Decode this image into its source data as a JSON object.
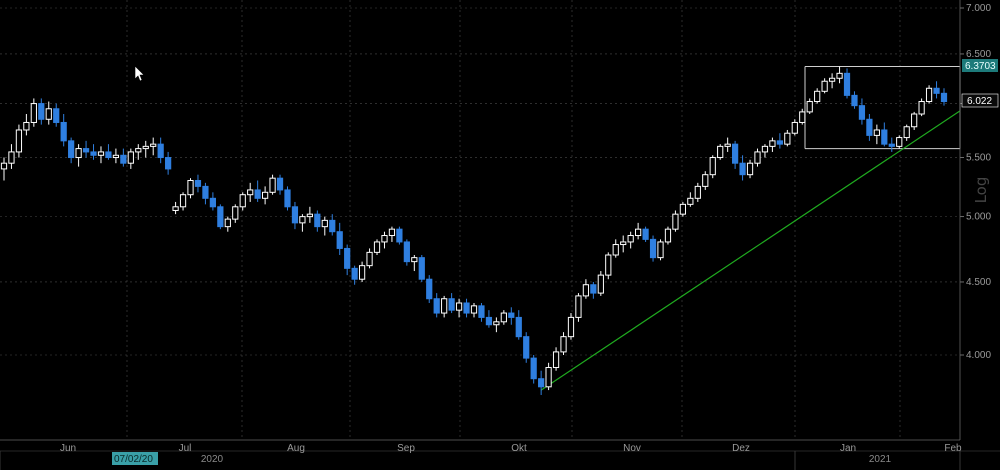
{
  "chart_data": {
    "type": "candlestick",
    "title": "",
    "scale_label": "Log",
    "y_scale": "log",
    "ylim": [
      3.6,
      7.0
    ],
    "y_ticks": [
      "7.000",
      "6.500",
      "6.000",
      "5.500",
      "5.000",
      "4.500",
      "4.000"
    ],
    "x_month_labels": [
      "Jun",
      "Jul",
      "Aug",
      "Sep",
      "Okt",
      "Nov",
      "Dez",
      "Jan",
      "Feb"
    ],
    "x_year_labels": [
      "2020",
      "2021"
    ],
    "cursor_date": "07/02/20",
    "high_tag": "6.3703",
    "last_price": "6.022",
    "colors": {
      "background": "#000000",
      "up_candle": "#ffffff",
      "down_candle": "#2f7fe0",
      "trendline": "#1faa1f",
      "range_box": "#cfcfcf",
      "grid": "#4a4a4a",
      "high_tag_bg": "#1d7a7a",
      "last_tag_fg": "#ffffff"
    },
    "trendline": {
      "from": {
        "date": "Okt 28 2020",
        "price": 3.78
      },
      "to": {
        "date": "Feb 2021",
        "price": 5.93
      }
    },
    "range_box": {
      "high": 6.37,
      "low": 5.58
    },
    "series": [
      {
        "name": "",
        "points": [
          [
            5.4,
            5.5,
            5.3,
            5.45
          ],
          [
            5.45,
            5.62,
            5.4,
            5.55
          ],
          [
            5.55,
            5.8,
            5.5,
            5.75
          ],
          [
            5.75,
            5.9,
            5.7,
            5.82
          ],
          [
            5.82,
            6.05,
            5.78,
            6.0
          ],
          [
            6.0,
            6.05,
            5.8,
            5.85
          ],
          [
            5.85,
            6.02,
            5.8,
            5.95
          ],
          [
            5.95,
            6.0,
            5.78,
            5.82
          ],
          [
            5.82,
            5.9,
            5.6,
            5.65
          ],
          [
            5.65,
            5.68,
            5.45,
            5.5
          ],
          [
            5.5,
            5.62,
            5.42,
            5.58
          ],
          [
            5.58,
            5.65,
            5.5,
            5.55
          ],
          [
            5.55,
            5.62,
            5.48,
            5.52
          ],
          [
            5.52,
            5.6,
            5.45,
            5.55
          ],
          [
            5.55,
            5.62,
            5.48,
            5.5
          ],
          [
            5.5,
            5.58,
            5.45,
            5.52
          ],
          [
            5.52,
            5.58,
            5.42,
            5.45
          ],
          [
            5.45,
            5.58,
            5.4,
            5.55
          ],
          [
            5.55,
            5.62,
            5.48,
            5.58
          ],
          [
            5.58,
            5.65,
            5.5,
            5.6
          ],
          [
            5.6,
            5.68,
            5.52,
            5.62
          ],
          [
            5.62,
            5.68,
            5.45,
            5.5
          ],
          [
            5.5,
            5.55,
            5.35,
            5.4
          ],
          [
            5.05,
            5.12,
            5.02,
            5.08
          ],
          [
            5.08,
            5.2,
            5.05,
            5.18
          ],
          [
            5.18,
            5.32,
            5.15,
            5.3
          ],
          [
            5.3,
            5.35,
            5.2,
            5.25
          ],
          [
            5.25,
            5.28,
            5.1,
            5.15
          ],
          [
            5.15,
            5.2,
            5.05,
            5.08
          ],
          [
            5.08,
            5.1,
            4.9,
            4.92
          ],
          [
            4.92,
            5.0,
            4.88,
            4.98
          ],
          [
            4.98,
            5.1,
            4.95,
            5.08
          ],
          [
            5.08,
            5.2,
            5.05,
            5.18
          ],
          [
            5.18,
            5.28,
            5.12,
            5.22
          ],
          [
            5.22,
            5.3,
            5.12,
            5.15
          ],
          [
            5.15,
            5.25,
            5.1,
            5.2
          ],
          [
            5.2,
            5.35,
            5.18,
            5.32
          ],
          [
            5.32,
            5.35,
            5.18,
            5.22
          ],
          [
            5.22,
            5.25,
            5.05,
            5.08
          ],
          [
            5.08,
            5.12,
            4.9,
            4.95
          ],
          [
            4.95,
            5.02,
            4.88,
            5.0
          ],
          [
            5.0,
            5.08,
            4.95,
            5.02
          ],
          [
            5.02,
            5.05,
            4.88,
            4.92
          ],
          [
            4.92,
            5.0,
            4.85,
            4.97
          ],
          [
            4.97,
            5.02,
            4.85,
            4.88
          ],
          [
            4.88,
            4.95,
            4.7,
            4.75
          ],
          [
            4.75,
            4.78,
            4.55,
            4.6
          ],
          [
            4.6,
            4.62,
            4.48,
            4.52
          ],
          [
            4.52,
            4.65,
            4.5,
            4.62
          ],
          [
            4.62,
            4.75,
            4.6,
            4.72
          ],
          [
            4.72,
            4.82,
            4.7,
            4.8
          ],
          [
            4.8,
            4.88,
            4.75,
            4.85
          ],
          [
            4.85,
            4.92,
            4.8,
            4.9
          ],
          [
            4.9,
            4.92,
            4.78,
            4.8
          ],
          [
            4.8,
            4.82,
            4.62,
            4.65
          ],
          [
            4.65,
            4.7,
            4.58,
            4.68
          ],
          [
            4.68,
            4.7,
            4.5,
            4.52
          ],
          [
            4.52,
            4.55,
            4.35,
            4.38
          ],
          [
            4.38,
            4.42,
            4.25,
            4.28
          ],
          [
            4.28,
            4.4,
            4.25,
            4.38
          ],
          [
            4.38,
            4.42,
            4.28,
            4.3
          ],
          [
            4.3,
            4.38,
            4.25,
            4.35
          ],
          [
            4.35,
            4.38,
            4.25,
            4.28
          ],
          [
            4.28,
            4.35,
            4.25,
            4.33
          ],
          [
            4.33,
            4.35,
            4.22,
            4.25
          ],
          [
            4.25,
            4.3,
            4.18,
            4.2
          ],
          [
            4.2,
            4.25,
            4.15,
            4.22
          ],
          [
            4.22,
            4.3,
            4.2,
            4.28
          ],
          [
            4.28,
            4.32,
            4.2,
            4.25
          ],
          [
            4.25,
            4.3,
            4.1,
            4.12
          ],
          [
            4.12,
            4.15,
            3.95,
            3.98
          ],
          [
            3.98,
            4.0,
            3.82,
            3.85
          ],
          [
            3.85,
            3.9,
            3.75,
            3.8
          ],
          [
            3.8,
            3.95,
            3.78,
            3.92
          ],
          [
            3.92,
            4.05,
            3.9,
            4.02
          ],
          [
            4.02,
            4.15,
            4.0,
            4.12
          ],
          [
            4.12,
            4.28,
            4.1,
            4.25
          ],
          [
            4.25,
            4.42,
            4.22,
            4.4
          ],
          [
            4.4,
            4.52,
            4.38,
            4.48
          ],
          [
            4.48,
            4.5,
            4.38,
            4.42
          ],
          [
            4.42,
            4.58,
            4.4,
            4.55
          ],
          [
            4.55,
            4.72,
            4.52,
            4.7
          ],
          [
            4.7,
            4.82,
            4.68,
            4.78
          ],
          [
            4.78,
            4.85,
            4.72,
            4.8
          ],
          [
            4.8,
            4.88,
            4.75,
            4.85
          ],
          [
            4.85,
            4.95,
            4.82,
            4.9
          ],
          [
            4.9,
            4.92,
            4.8,
            4.82
          ],
          [
            4.82,
            4.85,
            4.65,
            4.68
          ],
          [
            4.68,
            4.82,
            4.66,
            4.8
          ],
          [
            4.8,
            4.92,
            4.78,
            4.9
          ],
          [
            4.9,
            5.05,
            4.88,
            5.02
          ],
          [
            5.02,
            5.12,
            5.0,
            5.1
          ],
          [
            5.1,
            5.2,
            5.08,
            5.15
          ],
          [
            5.15,
            5.28,
            5.12,
            5.25
          ],
          [
            5.25,
            5.38,
            5.22,
            5.35
          ],
          [
            5.35,
            5.52,
            5.32,
            5.5
          ],
          [
            5.5,
            5.62,
            5.48,
            5.6
          ],
          [
            5.6,
            5.68,
            5.55,
            5.62
          ],
          [
            5.62,
            5.65,
            5.4,
            5.45
          ],
          [
            5.45,
            5.52,
            5.3,
            5.35
          ],
          [
            5.35,
            5.48,
            5.32,
            5.45
          ],
          [
            5.45,
            5.58,
            5.42,
            5.55
          ],
          [
            5.55,
            5.62,
            5.5,
            5.6
          ],
          [
            5.6,
            5.68,
            5.55,
            5.65
          ],
          [
            5.65,
            5.72,
            5.58,
            5.62
          ],
          [
            5.62,
            5.75,
            5.6,
            5.72
          ],
          [
            5.72,
            5.85,
            5.7,
            5.82
          ],
          [
            5.82,
            5.95,
            5.8,
            5.92
          ],
          [
            5.92,
            6.05,
            5.9,
            6.02
          ],
          [
            6.02,
            6.15,
            6.0,
            6.12
          ],
          [
            6.12,
            6.25,
            6.1,
            6.22
          ],
          [
            6.22,
            6.3,
            6.15,
            6.25
          ],
          [
            6.25,
            6.37,
            6.2,
            6.3
          ],
          [
            6.3,
            6.35,
            6.05,
            6.08
          ],
          [
            6.08,
            6.12,
            5.95,
            5.98
          ],
          [
            5.98,
            6.05,
            5.8,
            5.85
          ],
          [
            5.85,
            5.9,
            5.65,
            5.7
          ],
          [
            5.7,
            5.8,
            5.62,
            5.75
          ],
          [
            5.75,
            5.82,
            5.6,
            5.62
          ],
          [
            5.62,
            5.68,
            5.55,
            5.6
          ],
          [
            5.6,
            5.7,
            5.58,
            5.68
          ],
          [
            5.68,
            5.8,
            5.65,
            5.78
          ],
          [
            5.78,
            5.92,
            5.75,
            5.9
          ],
          [
            5.9,
            6.05,
            5.88,
            6.02
          ],
          [
            6.02,
            6.18,
            6.0,
            6.15
          ],
          [
            6.15,
            6.22,
            6.05,
            6.1
          ],
          [
            6.1,
            6.15,
            5.98,
            6.02
          ]
        ]
      }
    ]
  }
}
